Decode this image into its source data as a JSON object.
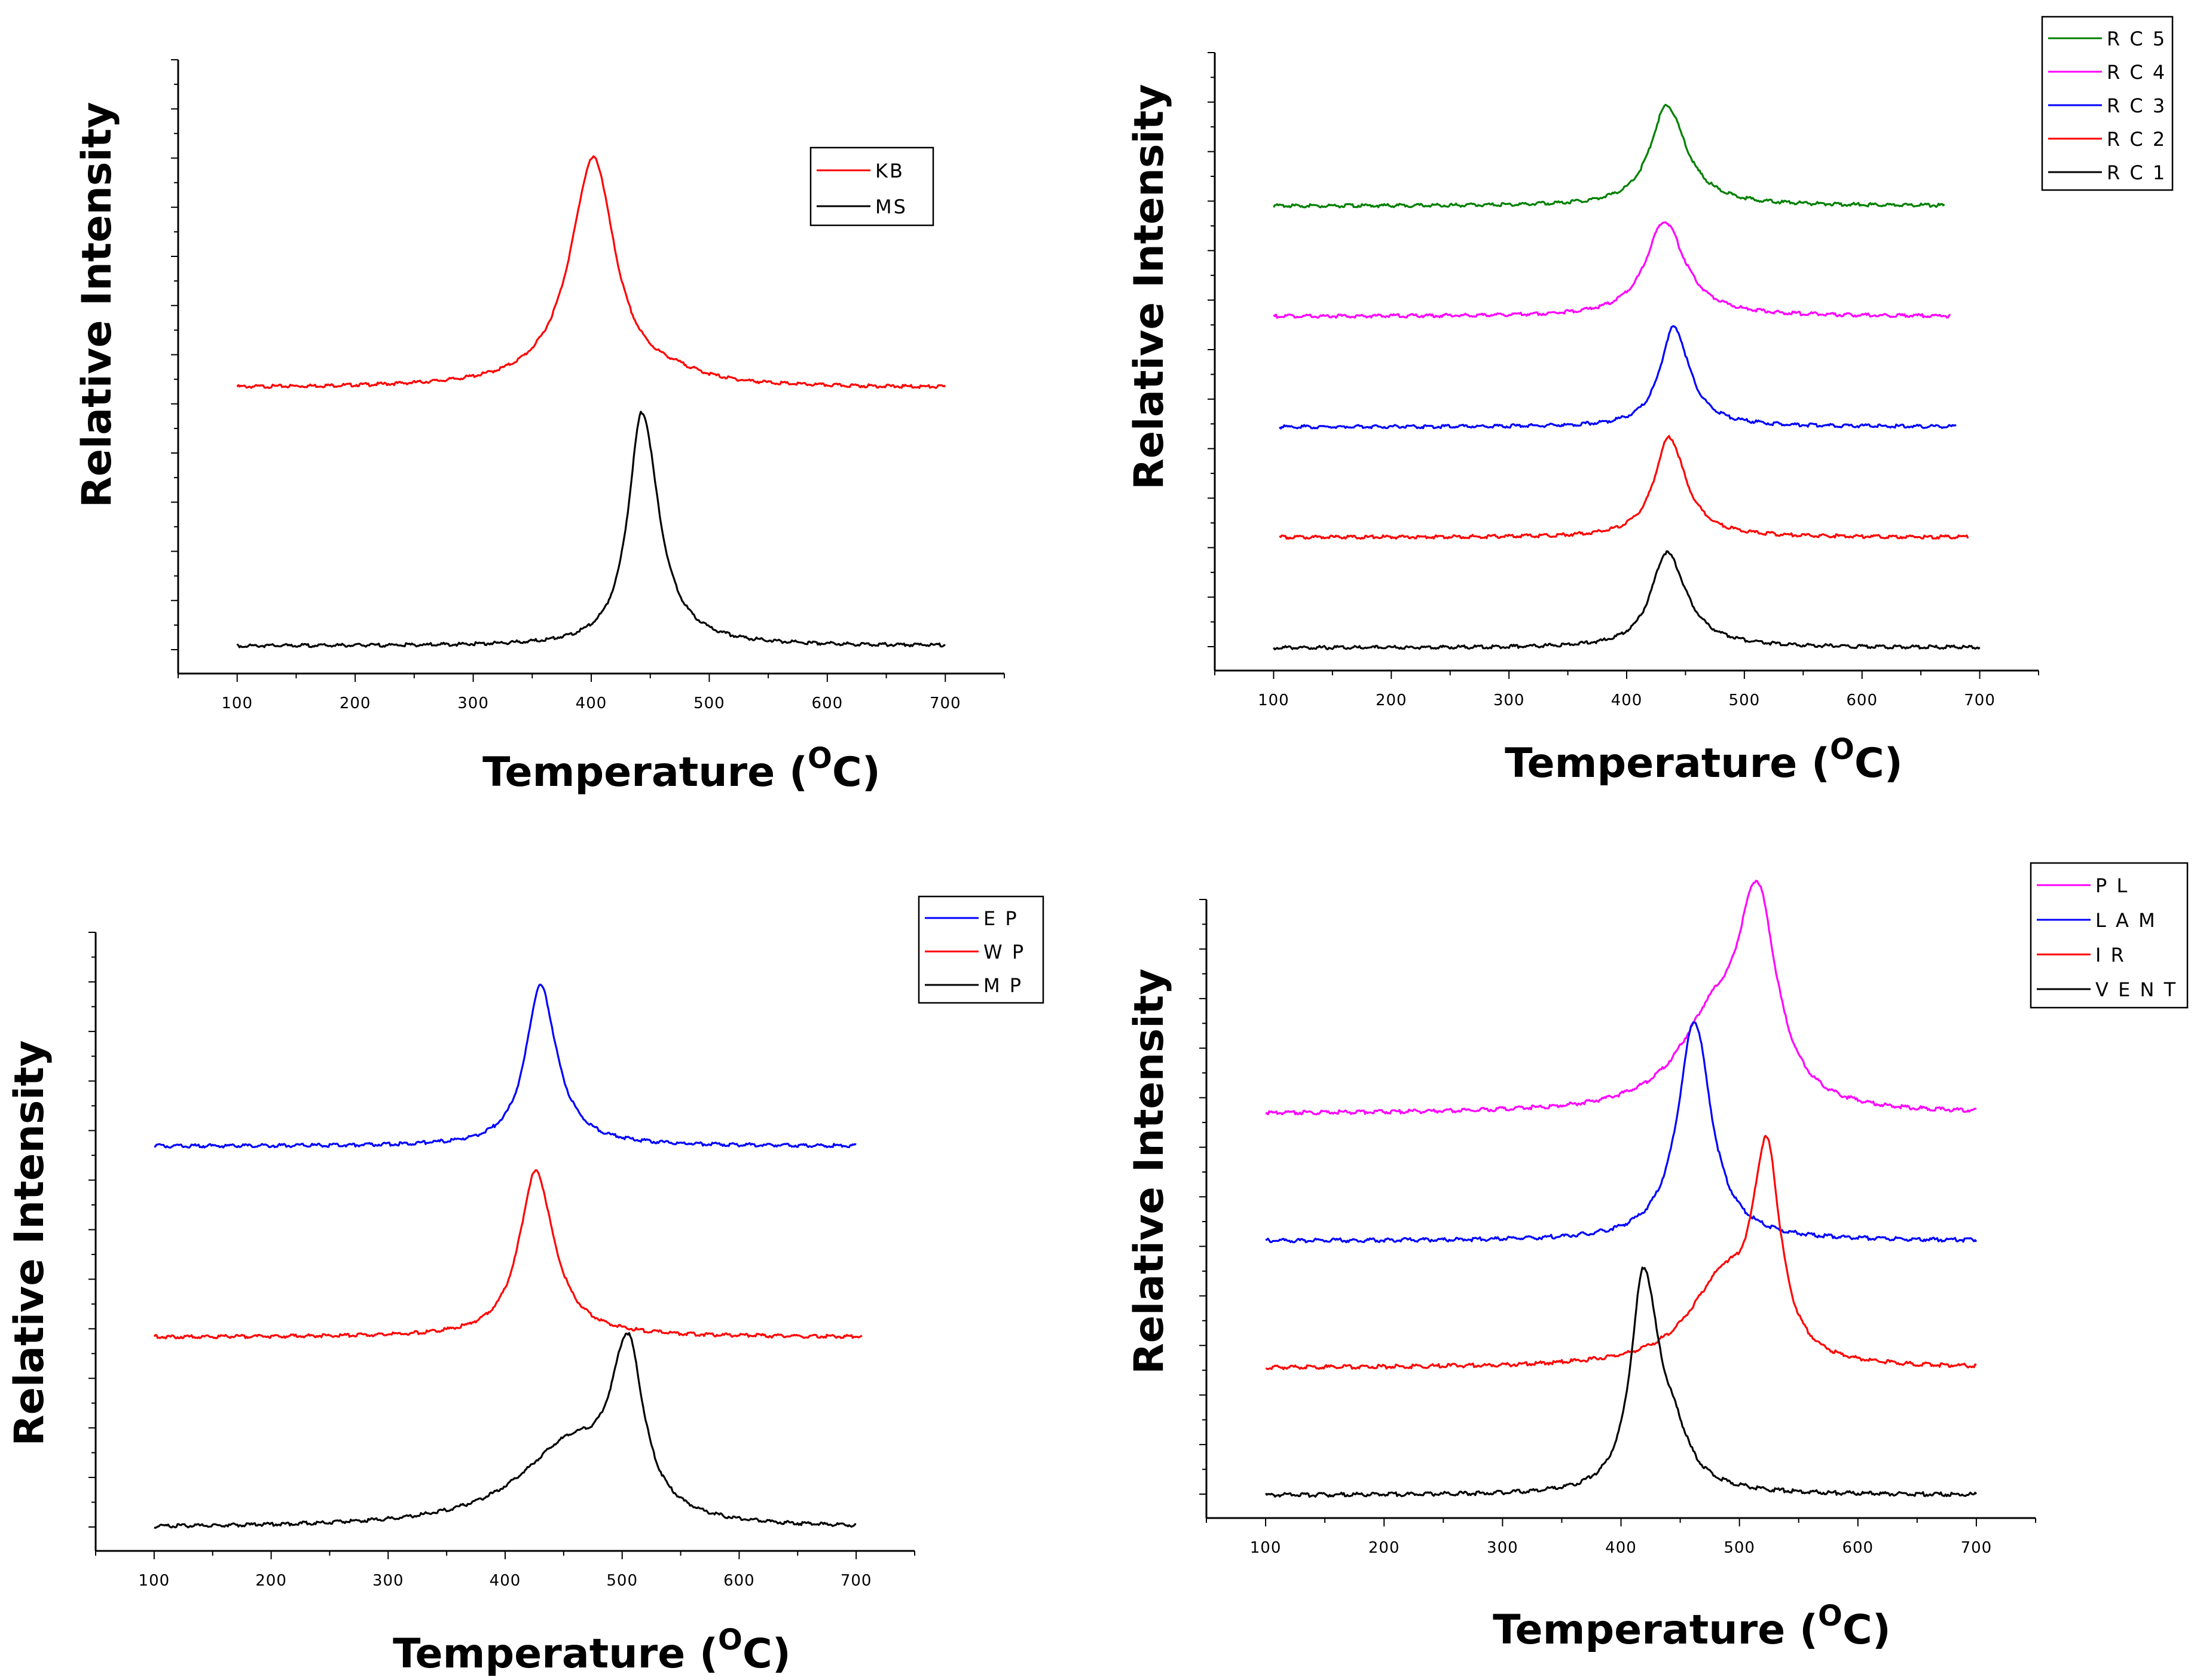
{
  "chart_data": [
    {
      "type": "line",
      "xlabel": "Temperature (OC)",
      "xlabel_main": "Temperature (",
      "xlabel_sup": "O",
      "xlabel_end": "C)",
      "ylabel": "Relative Intensity",
      "xlim": [
        50,
        750
      ],
      "ylim": [
        0,
        12
      ],
      "xticks": [
        100,
        200,
        300,
        400,
        500,
        600,
        700
      ],
      "legend_position": "upper-right",
      "series": [
        {
          "name": "KB",
          "color": "#ff0000",
          "x_range": [
            100,
            700
          ],
          "baseline": 5.5,
          "peaks": [
            {
              "center": 402,
              "height": 4.8,
              "width_left": 24,
              "width_right": 22
            },
            {
              "center": 470,
              "height": 0.15,
              "width_left": 30,
              "width_right": 30
            }
          ]
        },
        {
          "name": "MS",
          "color": "#000000",
          "x_range": [
            100,
            700
          ],
          "baseline": 0.1,
          "peaks": [
            {
              "center": 443,
              "height": 4.9,
              "width_left": 14,
              "width_right": 17
            }
          ]
        }
      ]
    },
    {
      "type": "line",
      "xlabel": "Temperature (OC)",
      "xlabel_main": "Temperature (",
      "xlabel_sup": "O",
      "xlabel_end": "C)",
      "ylabel": "Relative Intensity",
      "xlim": [
        50,
        750
      ],
      "ylim": [
        0,
        11.5
      ],
      "xticks": [
        100,
        200,
        300,
        400,
        500,
        600,
        700
      ],
      "legend_position": "top-right",
      "series": [
        {
          "name": "RC5",
          "color": "#008000",
          "x_range": [
            100,
            670
          ],
          "baseline": 8.8,
          "peaks": [
            {
              "center": 434,
              "height": 2.0,
              "width_left": 17,
              "width_right": 20
            }
          ]
        },
        {
          "name": "RC4",
          "color": "#ff00ff",
          "x_range": [
            100,
            675
          ],
          "baseline": 6.6,
          "peaks": [
            {
              "center": 432,
              "height": 1.9,
              "width_left": 19,
              "width_right": 21
            }
          ]
        },
        {
          "name": "RC3",
          "color": "#0000ff",
          "x_range": [
            105,
            680
          ],
          "baseline": 4.4,
          "peaks": [
            {
              "center": 440,
              "height": 2.0,
              "width_left": 14,
              "width_right": 16
            }
          ]
        },
        {
          "name": "RC2",
          "color": "#ff0000",
          "x_range": [
            105,
            690
          ],
          "baseline": 2.2,
          "peaks": [
            {
              "center": 436,
              "height": 2.0,
              "width_left": 15,
              "width_right": 17
            }
          ]
        },
        {
          "name": "RC1",
          "color": "#000000",
          "x_range": [
            100,
            700
          ],
          "baseline": 0.0,
          "peaks": [
            {
              "center": 434,
              "height": 1.9,
              "width_left": 16,
              "width_right": 20
            }
          ]
        }
      ],
      "legend_labels": [
        "R C 5",
        "R C 4",
        "R C 3",
        "R C 2",
        "R C 1"
      ]
    },
    {
      "type": "line",
      "xlabel": "Temperature (OC)",
      "xlabel_main": "Temperature (",
      "xlabel_sup": "O",
      "xlabel_end": "C)",
      "ylabel": "Relative Intensity",
      "xlim": [
        50,
        750
      ],
      "ylim": [
        0,
        11.5
      ],
      "xticks": [
        100,
        200,
        300,
        400,
        500,
        600,
        700
      ],
      "legend_position": "top-right",
      "series": [
        {
          "name": "EP",
          "color": "#0000ff",
          "x_range": [
            100,
            700
          ],
          "baseline": 7.6,
          "peaks": [
            {
              "center": 430,
              "height": 3.2,
              "width_left": 15,
              "width_right": 17
            }
          ]
        },
        {
          "name": "WP",
          "color": "#ff0000",
          "x_range": [
            100,
            705
          ],
          "baseline": 3.8,
          "peaks": [
            {
              "center": 426,
              "height": 3.3,
              "width_left": 17,
              "width_right": 19
            }
          ]
        },
        {
          "name": "MP",
          "color": "#000000",
          "x_range": [
            100,
            700
          ],
          "baseline": 0.0,
          "peaks": [
            {
              "center": 505,
              "height": 3.3,
              "width_left": 18,
              "width_right": 16
            },
            {
              "center": 455,
              "height": 1.5,
              "width_left": 55,
              "width_right": 40
            }
          ]
        }
      ],
      "legend_labels": [
        "E P",
        "W P",
        "M P"
      ]
    },
    {
      "type": "line",
      "xlabel": "Temperature (OC)",
      "xlabel_main": "Temperature (",
      "xlabel_sup": "O",
      "xlabel_end": "C)",
      "ylabel": "Relative Intensity",
      "xlim": [
        50,
        750
      ],
      "ylim": [
        0,
        10
      ],
      "xticks": [
        100,
        200,
        300,
        400,
        500,
        600,
        700
      ],
      "legend_position": "top-right",
      "series": [
        {
          "name": "PL",
          "color": "#ff00ff",
          "x_range": [
            100,
            700
          ],
          "baseline": 6.6,
          "peaks": [
            {
              "center": 515,
              "height": 3.7,
              "width_left": 22,
              "width_right": 20
            },
            {
              "center": 475,
              "height": 1.2,
              "width_left": 35,
              "width_right": 25
            }
          ]
        },
        {
          "name": "LAM",
          "color": "#0000ff",
          "x_range": [
            100,
            700
          ],
          "baseline": 4.4,
          "peaks": [
            {
              "center": 462,
              "height": 3.8,
              "width_left": 17,
              "width_right": 17
            }
          ]
        },
        {
          "name": "IR",
          "color": "#ff0000",
          "x_range": [
            100,
            700
          ],
          "baseline": 2.2,
          "peaks": [
            {
              "center": 523,
              "height": 3.6,
              "width_left": 15,
              "width_right": 14
            },
            {
              "center": 485,
              "height": 1.3,
              "width_left": 35,
              "width_right": 25
            }
          ]
        },
        {
          "name": "VENT",
          "color": "#000000",
          "x_range": [
            100,
            700
          ],
          "baseline": 0.0,
          "peaks": [
            {
              "center": 419,
              "height": 3.8,
              "width_left": 13,
              "width_right": 16
            },
            {
              "center": 445,
              "height": 0.6,
              "width_left": 15,
              "width_right": 15
            }
          ]
        }
      ],
      "legend_labels": [
        "P L",
        "L A M",
        "I R",
        "V E N T"
      ]
    }
  ]
}
